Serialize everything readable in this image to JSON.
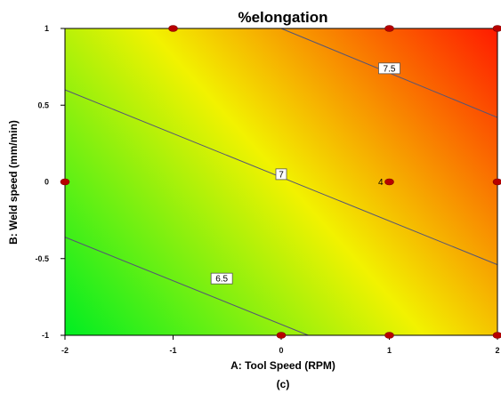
{
  "chart_data": {
    "type": "contour",
    "title": "%elongation",
    "xlabel": "A: Tool Speed (RPM)",
    "ylabel": "B: Weld speed (mm/min)",
    "caption": "(c)",
    "xlim": [
      -2,
      2
    ],
    "ylim": [
      -1,
      1
    ],
    "x_ticks": [
      "-2",
      "-1",
      "0",
      "1",
      "2"
    ],
    "y_ticks": [
      "-1",
      "-0.5",
      "0",
      "0.5",
      "1"
    ],
    "contours": [
      {
        "level": "6.5",
        "points": [
          [
            -2,
            -0.36
          ],
          [
            0.25,
            -1
          ]
        ],
        "label_at": [
          -0.55,
          -0.63
        ]
      },
      {
        "level": "7",
        "points": [
          [
            -2,
            0.6
          ],
          [
            2,
            -0.54
          ]
        ],
        "label_at": [
          0,
          0.05
        ]
      },
      {
        "level": "7.5",
        "points": [
          [
            0,
            1
          ],
          [
            2,
            0.42
          ]
        ],
        "label_at": [
          1,
          0.74
        ]
      }
    ],
    "design_points": [
      {
        "x": -1,
        "y": 1
      },
      {
        "x": 1,
        "y": 1
      },
      {
        "x": 2,
        "y": 1
      },
      {
        "x": -2,
        "y": 0
      },
      {
        "x": 1,
        "y": 0
      },
      {
        "x": 2,
        "y": 0
      },
      {
        "x": 0,
        "y": -1
      },
      {
        "x": 1,
        "y": -1
      },
      {
        "x": 2,
        "y": -1
      }
    ],
    "replicate_label": {
      "text": "4",
      "x": 1,
      "y": 0
    },
    "colors": {
      "low": "#00ee22",
      "mid": "#f2f200",
      "high": "#ff1500",
      "point": "#b80000",
      "contour": "#555577"
    }
  }
}
